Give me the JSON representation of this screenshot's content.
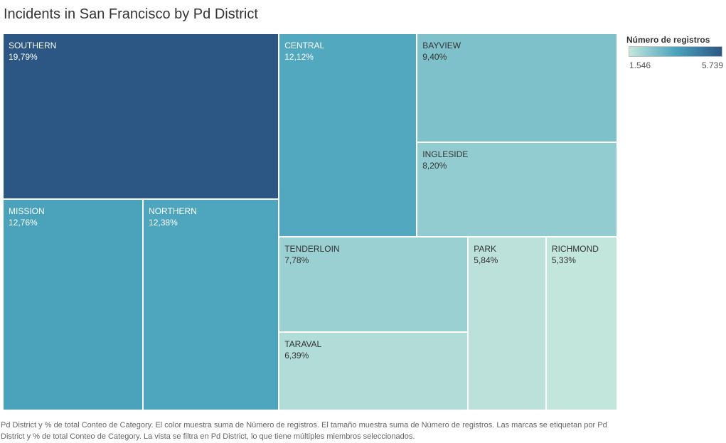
{
  "chart_data": {
    "type": "treemap",
    "title": "Incidents in San Francisco by Pd District",
    "legend": {
      "title": "Número de registros",
      "min_label": "1.546",
      "max_label": "5.739",
      "min_value": 1546,
      "max_value": 5739,
      "color_min": "#c3e6dc",
      "color_mid": "#4ba4bd",
      "color_max": "#2c5784",
      "placement": "top-right"
    },
    "items": [
      {
        "name": "SOUTHERN",
        "label": "19,79%",
        "value": 19.79
      },
      {
        "name": "MISSION",
        "label": "12,76%",
        "value": 12.76
      },
      {
        "name": "NORTHERN",
        "label": "12,38%",
        "value": 12.38
      },
      {
        "name": "CENTRAL",
        "label": "12,12%",
        "value": 12.12
      },
      {
        "name": "BAYVIEW",
        "label": "9,40%",
        "value": 9.4
      },
      {
        "name": "INGLESIDE",
        "label": "8,20%",
        "value": 8.2
      },
      {
        "name": "TENDERLOIN",
        "label": "7,78%",
        "value": 7.78
      },
      {
        "name": "TARAVAL",
        "label": "6,39%",
        "value": 6.39
      },
      {
        "name": "PARK",
        "label": "5,84%",
        "value": 5.84
      },
      {
        "name": "RICHMOND",
        "label": "5,33%",
        "value": 5.33
      }
    ]
  },
  "caption": "Pd District y % de total Conteo de Category.  El color muestra suma de Número de registros.  El tamaño muestra suma de Número de registros.  Las marcas se etiquetan por Pd District y % de total Conteo de Category. La vista se filtra en Pd District, lo que tiene múltiples miembros seleccionados."
}
